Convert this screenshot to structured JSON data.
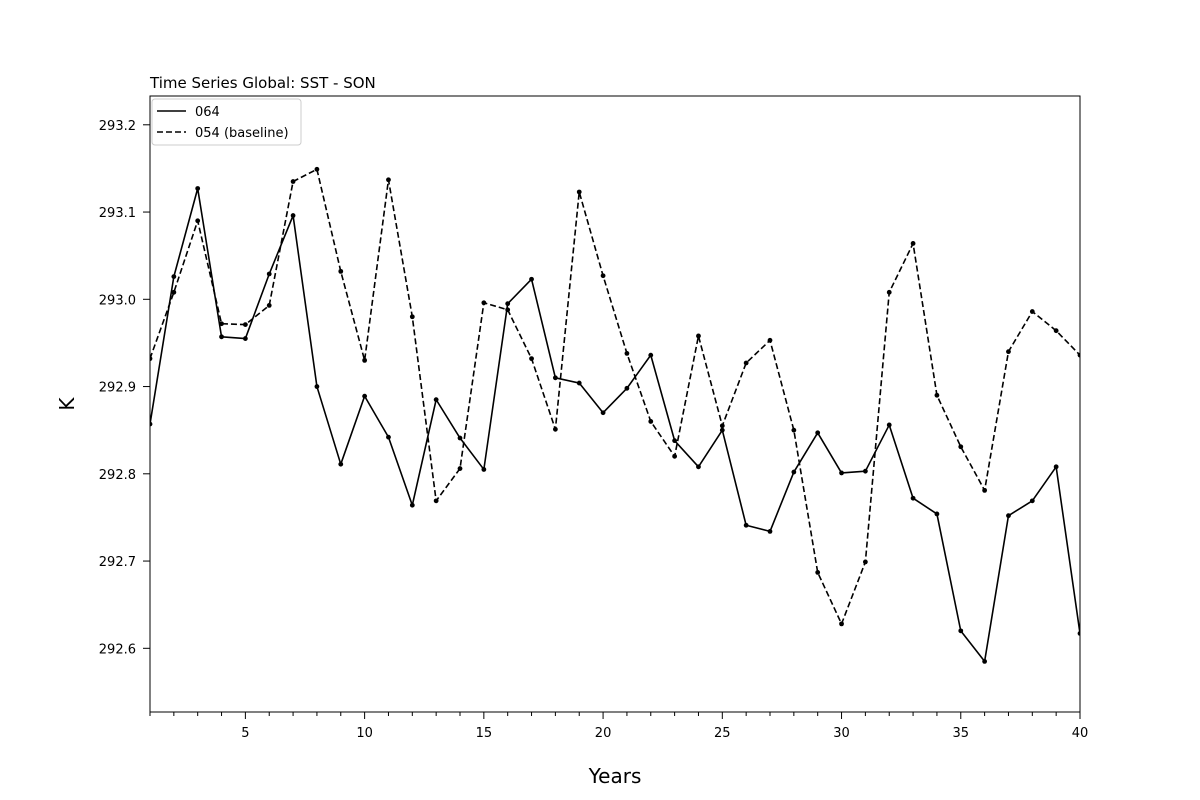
{
  "chart_data": {
    "type": "line",
    "title": "Time Series Global: SST - SON",
    "xlabel": "Years",
    "ylabel": "K",
    "xlim": [
      1,
      40
    ],
    "ylim": [
      292.527,
      293.233
    ],
    "xticks": [
      5,
      10,
      15,
      20,
      25,
      30,
      35,
      40
    ],
    "xminor_ticks": [
      1,
      2,
      3,
      4,
      5,
      6,
      7,
      8,
      9,
      10,
      11,
      12,
      13,
      14,
      15,
      16,
      17,
      18,
      19,
      20,
      21,
      22,
      23,
      24,
      25,
      26,
      27,
      28,
      29,
      30,
      31,
      32,
      33,
      34,
      35,
      36,
      37,
      38,
      39,
      40
    ],
    "yticks": [
      292.6,
      292.7,
      292.8,
      292.9,
      293.0,
      293.1,
      293.2
    ],
    "ytick_labels": [
      "292.6",
      "292.7",
      "292.8",
      "292.9",
      "293.0",
      "293.1",
      "293.2"
    ],
    "grid": false,
    "legend_position": "top-left",
    "x": [
      1,
      2,
      3,
      4,
      5,
      6,
      7,
      8,
      9,
      10,
      11,
      12,
      13,
      14,
      15,
      16,
      17,
      18,
      19,
      20,
      21,
      22,
      23,
      24,
      25,
      26,
      27,
      28,
      29,
      30,
      31,
      32,
      33,
      34,
      35,
      36,
      37,
      38,
      39,
      40
    ],
    "series": [
      {
        "name": "064",
        "style": "solid",
        "color": "#000000",
        "values": [
          292.857,
          293.026,
          293.127,
          292.957,
          292.955,
          293.029,
          293.096,
          292.9,
          292.811,
          292.889,
          292.842,
          292.764,
          292.885,
          292.841,
          292.805,
          292.995,
          293.023,
          292.91,
          292.904,
          292.87,
          292.898,
          292.936,
          292.838,
          292.808,
          292.85,
          292.741,
          292.734,
          292.802,
          292.847,
          292.801,
          292.803,
          292.856,
          292.772,
          292.754,
          292.62,
          292.585,
          292.752,
          292.769,
          292.808,
          292.617
        ]
      },
      {
        "name": "054 (baseline)",
        "style": "dashed",
        "color": "#000000",
        "values": [
          292.932,
          293.008,
          293.09,
          292.972,
          292.971,
          292.993,
          293.135,
          293.149,
          293.032,
          292.93,
          293.137,
          292.98,
          292.769,
          292.806,
          292.996,
          292.988,
          292.932,
          292.851,
          293.123,
          293.027,
          292.938,
          292.86,
          292.82,
          292.958,
          292.855,
          292.927,
          292.953,
          292.85,
          292.687,
          292.628,
          292.699,
          293.008,
          293.064,
          292.89,
          292.831,
          292.781,
          292.94,
          292.986,
          292.964,
          292.936
        ]
      }
    ]
  }
}
